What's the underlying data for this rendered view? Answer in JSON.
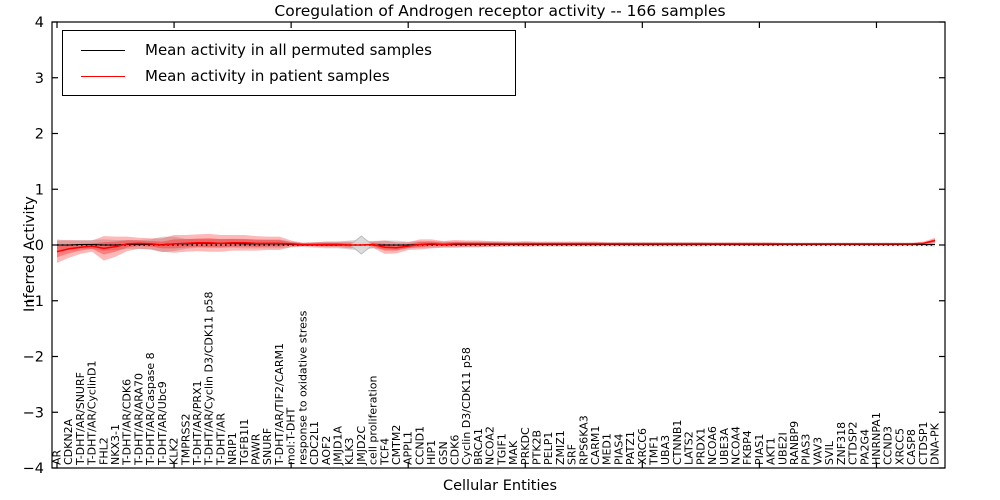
{
  "legend": {
    "entries": [
      {
        "label": "Mean activity in all permuted samples",
        "color": "#000000"
      },
      {
        "label": "Mean activity in patient samples",
        "color": "#ff0000"
      }
    ],
    "position": "upper-left",
    "border_color": "#000000"
  },
  "chart_data": {
    "type": "line",
    "title": "Coregulation of Androgen receptor activity -- 166 samples",
    "xlabel": "Cellular Entities",
    "ylabel": "Inferred Activity",
    "ylim": [
      -4,
      4
    ],
    "ytick_values": [
      4,
      3,
      2,
      1,
      0,
      -1,
      -2,
      -3,
      -4
    ],
    "ytick_labels": [
      "4",
      "3",
      "2",
      "1",
      "0",
      "−1",
      "−2",
      "−3",
      "−4"
    ],
    "grid": false,
    "zero_line": {
      "style": "dotted",
      "color": "#000000",
      "y": 0
    },
    "x_major_tick_step": 10,
    "categories": [
      "AR",
      "CDKN2A",
      "T-DHT/AR/SNURF",
      "T-DHT/AR/CyclinD1",
      "FHL2",
      "NKX3-1",
      "T-DHT/AR/CDK6",
      "T-DHT/AR/ARA70",
      "T-DHT/AR/Caspase 8",
      "T-DHT/AR/Ubc9",
      "KLK2",
      "TMPRSS2",
      "T-DHT/AR/PRX1",
      "T-DHT/AR/Cyclin D3/CDK11 p58",
      "T-DHT/AR",
      "NRIP1",
      "TGFB1I1",
      "PAWR",
      "SNURF",
      "T-DHT/AR/TIF2/CARM1",
      "mol:T-DHT",
      "response to oxidative stress",
      "CDC2L1",
      "AOF2",
      "JMJD1A",
      "KLK3",
      "JMJD2C",
      "cell proliferation",
      "TCF4",
      "CMTM2",
      "APPL1",
      "CCND1",
      "HIP1",
      "GSN",
      "CDK6",
      "Cyclin D3/CDK11 p58",
      "BRCA1",
      "NCOA2",
      "TGIF1",
      "MAK",
      "PRKDC",
      "PTK2B",
      "PELP1",
      "ZMIZ1",
      "SRF",
      "RPS6KA3",
      "CARM1",
      "MED1",
      "PIAS4",
      "PATZ1",
      "XRCC6",
      "TMF1",
      "UBA3",
      "CTNNB1",
      "LATS2",
      "PRDX1",
      "NCOA6",
      "UBE3A",
      "NCOA4",
      "FKBP4",
      "PIAS1",
      "AKT1",
      "UBE2I",
      "RANBP9",
      "PIAS3",
      "VAV3",
      "SVIL",
      "ZNF318",
      "CTDSP2",
      "PA2G4",
      "HNRNPA1",
      "CCND3",
      "XRCC5",
      "CASP8",
      "CTDSP1",
      "DNA-PK"
    ],
    "series": [
      {
        "name": "Mean activity in all permuted samples",
        "color": "#000000",
        "band_color": "#aaaaaa",
        "values": [
          0.0,
          0.0,
          0.01,
          0.01,
          0.0,
          0.0,
          0.01,
          0.01,
          0.01,
          0.01,
          0.02,
          0.02,
          0.03,
          0.03,
          0.03,
          0.03,
          0.02,
          0.02,
          0.02,
          0.02,
          0.01,
          0.0,
          0.0,
          0.0,
          0.0,
          0.0,
          0.0,
          0.0,
          0.0,
          0.0,
          0.0,
          0.01,
          0.01,
          0.01,
          0.01,
          0.01,
          0.01,
          0.01,
          0.01,
          0.01,
          0.01,
          0.01,
          0.01,
          0.01,
          0.01,
          0.01,
          0.01,
          0.01,
          0.01,
          0.01,
          0.01,
          0.01,
          0.01,
          0.01,
          0.01,
          0.01,
          0.01,
          0.01,
          0.01,
          0.01,
          0.01,
          0.01,
          0.01,
          0.01,
          0.01,
          0.01,
          0.01,
          0.01,
          0.01,
          0.01,
          0.01,
          0.01,
          0.01,
          0.01,
          0.01,
          0.01
        ],
        "band": [
          0.1,
          0.08,
          0.08,
          0.08,
          0.1,
          0.09,
          0.08,
          0.08,
          0.09,
          0.14,
          0.13,
          0.09,
          0.08,
          0.08,
          0.08,
          0.08,
          0.08,
          0.08,
          0.08,
          0.08,
          0.05,
          0.04,
          0.05,
          0.06,
          0.06,
          0.08,
          0.1,
          0.06,
          0.08,
          0.08,
          0.06,
          0.06,
          0.06,
          0.05,
          0.05,
          0.05,
          0.05,
          0.05,
          0.04,
          0.04,
          0.04,
          0.04,
          0.04,
          0.04,
          0.04,
          0.04,
          0.04,
          0.04,
          0.04,
          0.04,
          0.04,
          0.04,
          0.04,
          0.04,
          0.04,
          0.04,
          0.03,
          0.03,
          0.03,
          0.03,
          0.03,
          0.03,
          0.03,
          0.03,
          0.03,
          0.03,
          0.03,
          0.03,
          0.03,
          0.03,
          0.03,
          0.03,
          0.03,
          0.03,
          0.03,
          0.04
        ]
      },
      {
        "name": "Mean activity in patient samples",
        "color": "#ff0000",
        "band_color": "#ff0000",
        "values": [
          -0.12,
          -0.07,
          -0.04,
          -0.02,
          -0.06,
          -0.03,
          0.02,
          0.03,
          0.02,
          0.0,
          0.02,
          0.03,
          0.04,
          0.04,
          0.03,
          0.04,
          0.04,
          0.03,
          0.03,
          0.03,
          0.02,
          0.01,
          0.01,
          0.01,
          0.01,
          0.0,
          0.0,
          0.01,
          -0.04,
          -0.05,
          -0.02,
          0.01,
          0.02,
          0.01,
          0.02,
          0.02,
          0.02,
          0.02,
          0.02,
          0.02,
          0.02,
          0.02,
          0.02,
          0.02,
          0.02,
          0.02,
          0.02,
          0.02,
          0.02,
          0.02,
          0.02,
          0.02,
          0.02,
          0.02,
          0.02,
          0.02,
          0.02,
          0.02,
          0.02,
          0.02,
          0.02,
          0.02,
          0.02,
          0.02,
          0.02,
          0.02,
          0.02,
          0.02,
          0.02,
          0.02,
          0.02,
          0.02,
          0.02,
          0.02,
          0.03,
          0.08
        ],
        "band": [
          0.2,
          0.16,
          0.12,
          0.1,
          0.22,
          0.18,
          0.13,
          0.1,
          0.1,
          0.12,
          0.16,
          0.15,
          0.15,
          0.16,
          0.15,
          0.14,
          0.14,
          0.13,
          0.12,
          0.12,
          0.06,
          0.03,
          0.04,
          0.05,
          0.05,
          0.06,
          0.05,
          0.06,
          0.12,
          0.1,
          0.07,
          0.09,
          0.08,
          0.06,
          0.07,
          0.06,
          0.06,
          0.05,
          0.05,
          0.04,
          0.05,
          0.04,
          0.04,
          0.04,
          0.04,
          0.04,
          0.04,
          0.03,
          0.03,
          0.03,
          0.03,
          0.03,
          0.03,
          0.03,
          0.03,
          0.03,
          0.03,
          0.03,
          0.03,
          0.03,
          0.03,
          0.03,
          0.02,
          0.02,
          0.02,
          0.02,
          0.02,
          0.02,
          0.02,
          0.02,
          0.02,
          0.02,
          0.02,
          0.02,
          0.03,
          0.05
        ]
      }
    ],
    "annotations": [
      {
        "type": "diamond-marker",
        "category": "JMJD2C",
        "index": 26,
        "value": 0,
        "color": "#d9d9d9"
      }
    ]
  }
}
